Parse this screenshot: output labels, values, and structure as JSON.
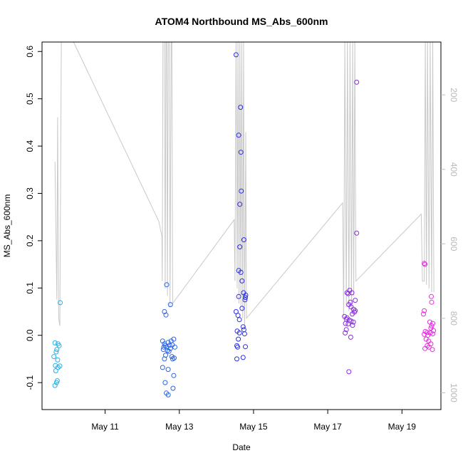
{
  "chart_data": {
    "type": "scatter",
    "title": "ATOM4 Northbound MS_Abs_600nm",
    "xlabel": "Date",
    "ylabel": "MS_Abs_600nm",
    "x_axis": {
      "unit": "days in May",
      "lim": [
        9.3,
        20.05
      ],
      "ticks": [
        11,
        13,
        15,
        17,
        19
      ],
      "tick_labels": [
        "May 11",
        "May 13",
        "May 15",
        "May 17",
        "May 19"
      ]
    },
    "y_axis": {
      "lim": [
        -0.157,
        0.62
      ],
      "ticks": [
        -0.1,
        0.0,
        0.1,
        0.2,
        0.3,
        0.4,
        0.5,
        0.6
      ],
      "tick_labels": [
        "-0.1",
        "0.0",
        "0.1",
        "0.2",
        "0.3",
        "0.4",
        "0.5",
        "0.6"
      ]
    },
    "y2_axis": {
      "description": "secondary depth axis (reversed), drawn in light gray",
      "lim": [
        1045,
        58
      ],
      "ticks": [
        200,
        400,
        600,
        800,
        1000
      ],
      "tick_labels": [
        "200",
        "400",
        "600",
        "800",
        "1000"
      ],
      "color": "#bdbdbd"
    },
    "grid": false,
    "legend": "none",
    "marker": "open-circle",
    "series": [
      {
        "color": "#29aee6",
        "points": [
          [
            9.65,
            -0.016
          ],
          [
            9.7,
            -0.03
          ],
          [
            9.68,
            -0.035
          ],
          [
            9.73,
            -0.018
          ],
          [
            9.76,
            -0.022
          ],
          [
            9.62,
            -0.045
          ],
          [
            9.72,
            -0.052
          ],
          [
            9.66,
            -0.064
          ],
          [
            9.78,
            -0.065
          ],
          [
            9.73,
            -0.068
          ],
          [
            9.67,
            -0.075
          ],
          [
            9.71,
            -0.096
          ],
          [
            9.69,
            -0.1
          ],
          [
            9.65,
            -0.106
          ],
          [
            9.79,
            0.069
          ]
        ]
      },
      {
        "color": "#2a63e6",
        "points": [
          [
            12.55,
            -0.012
          ],
          [
            12.6,
            -0.018
          ],
          [
            12.62,
            -0.022
          ],
          [
            12.7,
            -0.015
          ],
          [
            12.78,
            -0.012
          ],
          [
            12.85,
            -0.008
          ],
          [
            12.58,
            -0.025
          ],
          [
            12.66,
            -0.025
          ],
          [
            12.74,
            -0.021
          ],
          [
            12.81,
            -0.02
          ],
          [
            12.88,
            -0.025
          ],
          [
            12.57,
            -0.03
          ],
          [
            12.68,
            -0.032
          ],
          [
            12.76,
            -0.028
          ],
          [
            12.72,
            -0.034
          ],
          [
            12.63,
            -0.042
          ],
          [
            12.8,
            -0.045
          ],
          [
            12.86,
            -0.048
          ],
          [
            12.6,
            -0.05
          ],
          [
            12.82,
            -0.05
          ],
          [
            12.55,
            -0.068
          ],
          [
            12.7,
            -0.072
          ],
          [
            12.85,
            -0.085
          ],
          [
            12.62,
            -0.1
          ],
          [
            12.83,
            -0.112
          ],
          [
            12.65,
            -0.122
          ],
          [
            12.7,
            -0.126
          ],
          [
            12.66,
            0.107
          ],
          [
            12.76,
            0.065
          ],
          [
            12.6,
            0.05
          ],
          [
            12.64,
            0.043
          ]
        ]
      },
      {
        "color": "#2a2ee6",
        "points": [
          [
            14.53,
            0.593
          ],
          [
            14.65,
            0.482
          ],
          [
            14.6,
            0.423
          ],
          [
            14.66,
            0.387
          ],
          [
            14.67,
            0.305
          ],
          [
            14.63,
            0.277
          ],
          [
            14.74,
            0.202
          ],
          [
            14.63,
            0.187
          ],
          [
            14.6,
            0.137
          ],
          [
            14.66,
            0.133
          ],
          [
            14.69,
            0.115
          ],
          [
            14.73,
            0.09
          ],
          [
            14.79,
            0.085
          ],
          [
            14.78,
            0.08
          ],
          [
            14.6,
            0.082
          ],
          [
            14.77,
            0.075
          ],
          [
            14.53,
            0.05
          ],
          [
            14.58,
            0.042
          ],
          [
            14.69,
            0.057
          ],
          [
            14.62,
            0.033
          ],
          [
            14.72,
            0.018
          ],
          [
            14.74,
            0.012
          ],
          [
            14.56,
            0.009
          ],
          [
            14.62,
            0.005
          ],
          [
            14.76,
            0.003
          ],
          [
            14.59,
            -0.008
          ],
          [
            14.55,
            -0.022
          ],
          [
            14.57,
            -0.025
          ],
          [
            14.78,
            -0.024
          ],
          [
            14.55,
            -0.05
          ],
          [
            14.72,
            -0.047
          ]
        ]
      },
      {
        "color": "#8a2ae6",
        "points": [
          [
            17.59,
            0.095
          ],
          [
            17.65,
            0.09
          ],
          [
            17.55,
            0.088
          ],
          [
            17.52,
            0.09
          ],
          [
            17.74,
            0.074
          ],
          [
            17.61,
            0.07
          ],
          [
            17.57,
            0.065
          ],
          [
            17.63,
            0.06
          ],
          [
            17.7,
            0.055
          ],
          [
            17.74,
            0.052
          ],
          [
            17.72,
            0.049
          ],
          [
            17.66,
            0.045
          ],
          [
            17.45,
            0.04
          ],
          [
            17.52,
            0.037
          ],
          [
            17.5,
            0.034
          ],
          [
            17.58,
            0.032
          ],
          [
            17.63,
            0.03
          ],
          [
            17.69,
            0.028
          ],
          [
            17.48,
            0.025
          ],
          [
            17.55,
            0.024
          ],
          [
            17.67,
            0.021
          ],
          [
            17.5,
            0.012
          ],
          [
            17.47,
            0.005
          ],
          [
            17.62,
            -0.004
          ],
          [
            17.57,
            -0.077
          ],
          [
            17.78,
            0.535
          ],
          [
            17.78,
            0.216
          ]
        ]
      },
      {
        "color": "#e62ae0",
        "points": [
          [
            19.6,
            0.152
          ],
          [
            19.62,
            0.15
          ],
          [
            19.79,
            0.082
          ],
          [
            19.8,
            0.07
          ],
          [
            19.6,
            0.052
          ],
          [
            19.58,
            0.045
          ],
          [
            19.75,
            0.028
          ],
          [
            19.83,
            0.025
          ],
          [
            19.8,
            0.02
          ],
          [
            19.78,
            0.015
          ],
          [
            19.85,
            0.01
          ],
          [
            19.63,
            0.008
          ],
          [
            19.68,
            0.006
          ],
          [
            19.76,
            0.005
          ],
          [
            19.6,
            0.002
          ],
          [
            19.83,
            0.003
          ],
          [
            19.7,
            0.0
          ],
          [
            19.65,
            -0.008
          ],
          [
            19.72,
            -0.012
          ],
          [
            19.78,
            -0.018
          ],
          [
            19.68,
            -0.022
          ],
          [
            19.73,
            -0.025
          ],
          [
            19.62,
            -0.028
          ],
          [
            19.82,
            -0.03
          ]
        ]
      }
    ],
    "depth_trace": {
      "color": "#c9c9c9",
      "points": [
        [
          9.65,
          380
        ],
        [
          9.7,
          750
        ],
        [
          9.72,
          260
        ],
        [
          9.75,
          800
        ],
        [
          9.78,
          820
        ],
        [
          9.82,
          58
        ],
        [
          9.83,
          58
        ],
        [
          10.15,
          58
        ],
        [
          12.45,
          540
        ],
        [
          12.53,
          580
        ],
        [
          12.54,
          700
        ],
        [
          12.56,
          58
        ],
        [
          12.6,
          58
        ],
        [
          12.62,
          720
        ],
        [
          12.64,
          58
        ],
        [
          12.66,
          58
        ],
        [
          12.68,
          740
        ],
        [
          12.7,
          58
        ],
        [
          12.73,
          58
        ],
        [
          12.75,
          770
        ],
        [
          12.78,
          58
        ],
        [
          12.8,
          58
        ],
        [
          12.82,
          760
        ],
        [
          14.48,
          535
        ],
        [
          14.5,
          700
        ],
        [
          14.53,
          58
        ],
        [
          14.56,
          720
        ],
        [
          14.58,
          58
        ],
        [
          14.61,
          760
        ],
        [
          14.63,
          58
        ],
        [
          14.66,
          770
        ],
        [
          14.68,
          58
        ],
        [
          14.71,
          800
        ],
        [
          14.73,
          58
        ],
        [
          14.76,
          830
        ],
        [
          14.79,
          300
        ],
        [
          14.81,
          800
        ],
        [
          17.4,
          490
        ],
        [
          17.43,
          800
        ],
        [
          17.46,
          58
        ],
        [
          17.5,
          770
        ],
        [
          17.53,
          58
        ],
        [
          17.57,
          780
        ],
        [
          17.6,
          58
        ],
        [
          17.64,
          790
        ],
        [
          17.67,
          58
        ],
        [
          17.7,
          740
        ],
        [
          17.73,
          58
        ],
        [
          17.76,
          700
        ],
        [
          19.52,
          520
        ],
        [
          19.55,
          700
        ],
        [
          19.6,
          700
        ],
        [
          19.63,
          58
        ],
        [
          19.66,
          710
        ],
        [
          19.69,
          58
        ],
        [
          19.73,
          720
        ],
        [
          19.76,
          58
        ],
        [
          19.8,
          730
        ],
        [
          19.83,
          58
        ],
        [
          19.86,
          730
        ]
      ]
    }
  }
}
